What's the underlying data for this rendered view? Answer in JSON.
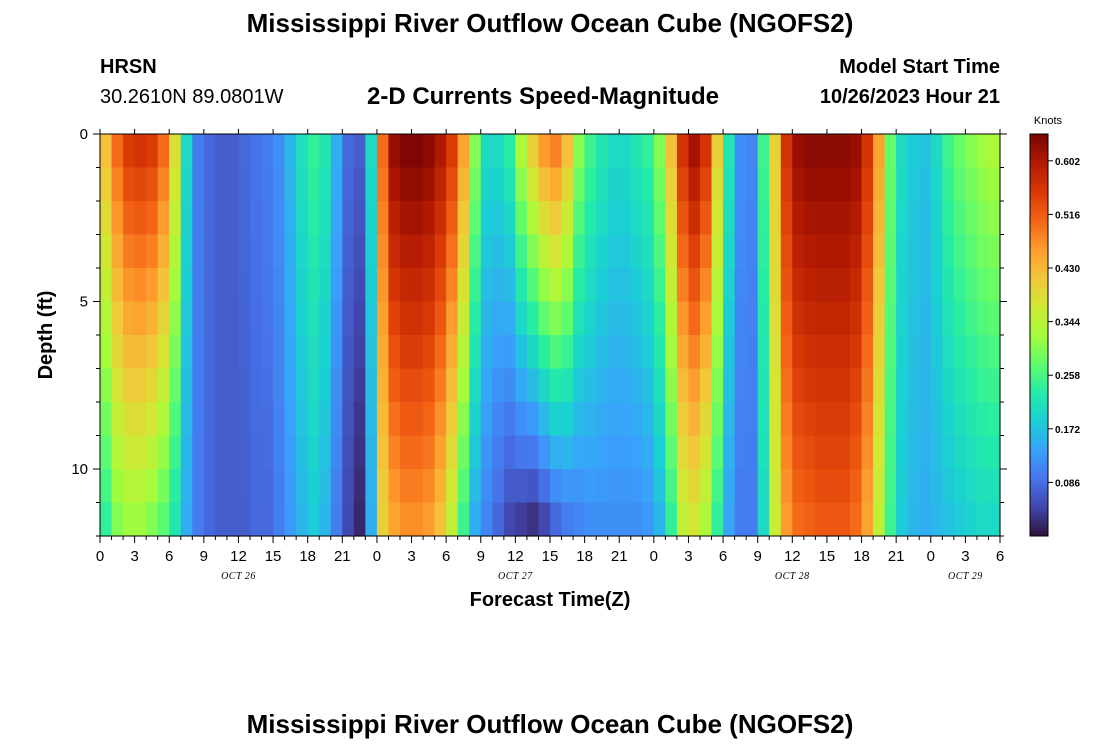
{
  "header": {
    "title": "Mississippi River Outflow Ocean Cube (NGOFS2)",
    "station_name": "HRSN",
    "station_coords": "30.2610N  89.0801W",
    "subtitle": "2-D Currents Speed-Magnitude",
    "model_label": "Model Start Time",
    "model_time": "10/26/2023 Hour 21"
  },
  "footer": {
    "title": "Mississippi River Outflow Ocean Cube (NGOFS2)"
  },
  "colors": {
    "accent": "#000000",
    "colormap": [
      "#30123b",
      "#4145ab",
      "#4675ed",
      "#39a2fc",
      "#1bcfd4",
      "#24eca6",
      "#61fc6c",
      "#a4fc3b",
      "#d1e834",
      "#f3c63a",
      "#fe9b2d",
      "#f36315",
      "#d93806",
      "#b11901",
      "#7a0403"
    ]
  },
  "chart_data": {
    "type": "heatmap",
    "title": "2-D Currents Speed-Magnitude",
    "xlabel": "Forecast Time(Z)",
    "ylabel": "Depth (ft)",
    "x_tick_labels": [
      "0",
      "3",
      "6",
      "9",
      "12",
      "15",
      "18",
      "21",
      "0",
      "3",
      "6",
      "9",
      "12",
      "15",
      "18",
      "21",
      "0",
      "3",
      "6",
      "9",
      "12",
      "15",
      "18",
      "21",
      "0",
      "3",
      "6"
    ],
    "x_range_hours": [
      0,
      78
    ],
    "y_tick_labels": [
      "0",
      "5",
      "10"
    ],
    "ylim": [
      0,
      12
    ],
    "day_labels": [
      {
        "label": "OCT 26",
        "hour": 12
      },
      {
        "label": "OCT 27",
        "hour": 36
      },
      {
        "label": "OCT 28",
        "hour": 60
      },
      {
        "label": "OCT 29",
        "hour": 75
      }
    ],
    "colorbar": {
      "label": "Knots",
      "ticks": [
        "0.602",
        "0.516",
        "0.430",
        "0.344",
        "0.258",
        "0.172",
        "0.086"
      ],
      "tick_values": [
        0.602,
        0.516,
        0.43,
        0.344,
        0.258,
        0.172,
        0.086
      ],
      "range": [
        0,
        0.645
      ]
    },
    "depth_levels": 12,
    "surface_profile_hourly": [
      0.42,
      0.5,
      0.55,
      0.56,
      0.55,
      0.5,
      0.38,
      0.2,
      0.1,
      0.08,
      0.07,
      0.07,
      0.08,
      0.09,
      0.1,
      0.12,
      0.16,
      0.21,
      0.24,
      0.22,
      0.15,
      0.08,
      0.07,
      0.2,
      0.5,
      0.62,
      0.64,
      0.64,
      0.63,
      0.6,
      0.55,
      0.45,
      0.3,
      0.2,
      0.2,
      0.23,
      0.33,
      0.4,
      0.46,
      0.48,
      0.42,
      0.3,
      0.25,
      0.22,
      0.2,
      0.2,
      0.22,
      0.24,
      0.3,
      0.42,
      0.56,
      0.61,
      0.56,
      0.4,
      0.22,
      0.12,
      0.11,
      0.25,
      0.4,
      0.56,
      0.62,
      0.63,
      0.63,
      0.63,
      0.63,
      0.62,
      0.56,
      0.45,
      0.28,
      0.2,
      0.18,
      0.17,
      0.2,
      0.25,
      0.28,
      0.3,
      0.32,
      0.33,
      0.33
    ],
    "bottom_profile_hourly": [
      0.24,
      0.3,
      0.32,
      0.32,
      0.3,
      0.27,
      0.22,
      0.15,
      0.1,
      0.08,
      0.07,
      0.07,
      0.07,
      0.08,
      0.08,
      0.1,
      0.13,
      0.16,
      0.18,
      0.16,
      0.1,
      0.05,
      0.02,
      0.15,
      0.4,
      0.45,
      0.47,
      0.47,
      0.46,
      0.42,
      0.35,
      0.25,
      0.15,
      0.11,
      0.08,
      0.05,
      0.04,
      0.03,
      0.05,
      0.08,
      0.1,
      0.11,
      0.12,
      0.12,
      0.12,
      0.12,
      0.12,
      0.13,
      0.16,
      0.24,
      0.35,
      0.37,
      0.33,
      0.24,
      0.14,
      0.1,
      0.1,
      0.2,
      0.36,
      0.46,
      0.5,
      0.51,
      0.52,
      0.52,
      0.52,
      0.5,
      0.45,
      0.35,
      0.25,
      0.18,
      0.16,
      0.15,
      0.16,
      0.17,
      0.18,
      0.19,
      0.2,
      0.2,
      0.2
    ]
  }
}
